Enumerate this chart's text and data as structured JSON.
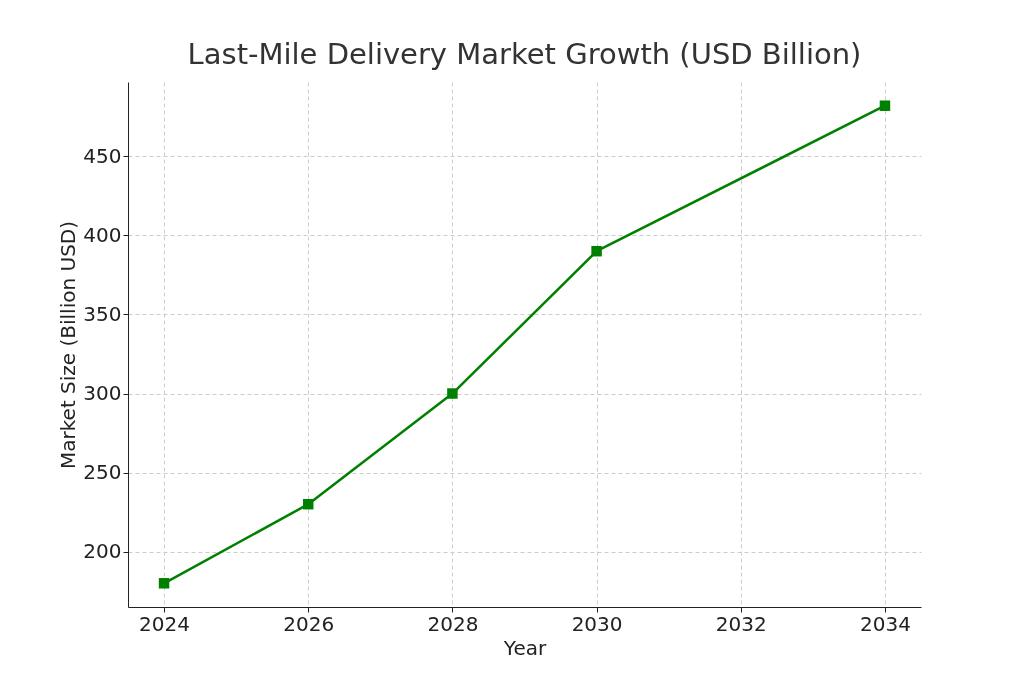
{
  "chart_data": {
    "type": "line",
    "title": "Last-Mile Delivery Market Growth (USD Billion)",
    "xlabel": "Year",
    "ylabel": "Market Size (Billion USD)",
    "x": [
      2024,
      2026,
      2028,
      2030,
      2034
    ],
    "series": [
      {
        "color": "#008000",
        "values": [
          180,
          230,
          300,
          390,
          482
        ]
      }
    ],
    "xlim": [
      2023.5,
      2034.5
    ],
    "xticks": [
      2024,
      2026,
      2028,
      2030,
      2032,
      2034
    ],
    "ylim": [
      165,
      497
    ],
    "yticks": [
      200,
      250,
      300,
      350,
      400,
      450
    ],
    "grid": true,
    "marker": "square",
    "line_style": "solid"
  }
}
